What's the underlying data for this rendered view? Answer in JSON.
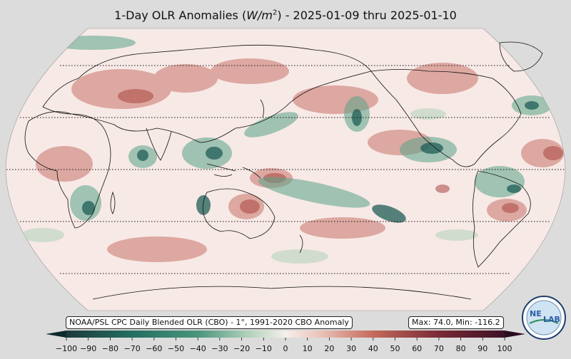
{
  "title": {
    "prefix": "1-Day OLR Anomalies (",
    "unit_base": "W/m",
    "unit_exp": "2",
    "suffix": ") - 2025-01-09 thru 2025-01-10"
  },
  "source_text": "NOAA/PSL CPC Daily Blended OLR (CBO) - 1°, 1991-2020 CBO Anomaly",
  "stats_text": "Max: 74.0,  Min: -116.2",
  "colorbar": {
    "ticks": [
      "−100",
      "−90",
      "−80",
      "−70",
      "−60",
      "−50",
      "−40",
      "−30",
      "−20",
      "−10",
      "0",
      "10",
      "20",
      "30",
      "40",
      "50",
      "60",
      "70",
      "80",
      "90",
      "100"
    ],
    "colors": [
      "#1a3a3a",
      "#1e4a48",
      "#1f5d57",
      "#246e62",
      "#2f806d",
      "#4a957c",
      "#6aa98d",
      "#8ebda3",
      "#b5d4bd",
      "#dbe9de",
      "#f5efec",
      "#f2dcd6",
      "#ebc2b8",
      "#e0a597",
      "#d38777",
      "#c46a5c",
      "#b04f46",
      "#963a3a",
      "#7a2a36",
      "#5c1d30",
      "#3d1127"
    ]
  },
  "logo": {
    "text_left": "NE",
    "text_right": "LAB"
  },
  "colors": {
    "positive": "#c9736a",
    "negative": "#2f7f6e",
    "neutral": "#f7e9e6",
    "background": "#dcdcdc"
  }
}
